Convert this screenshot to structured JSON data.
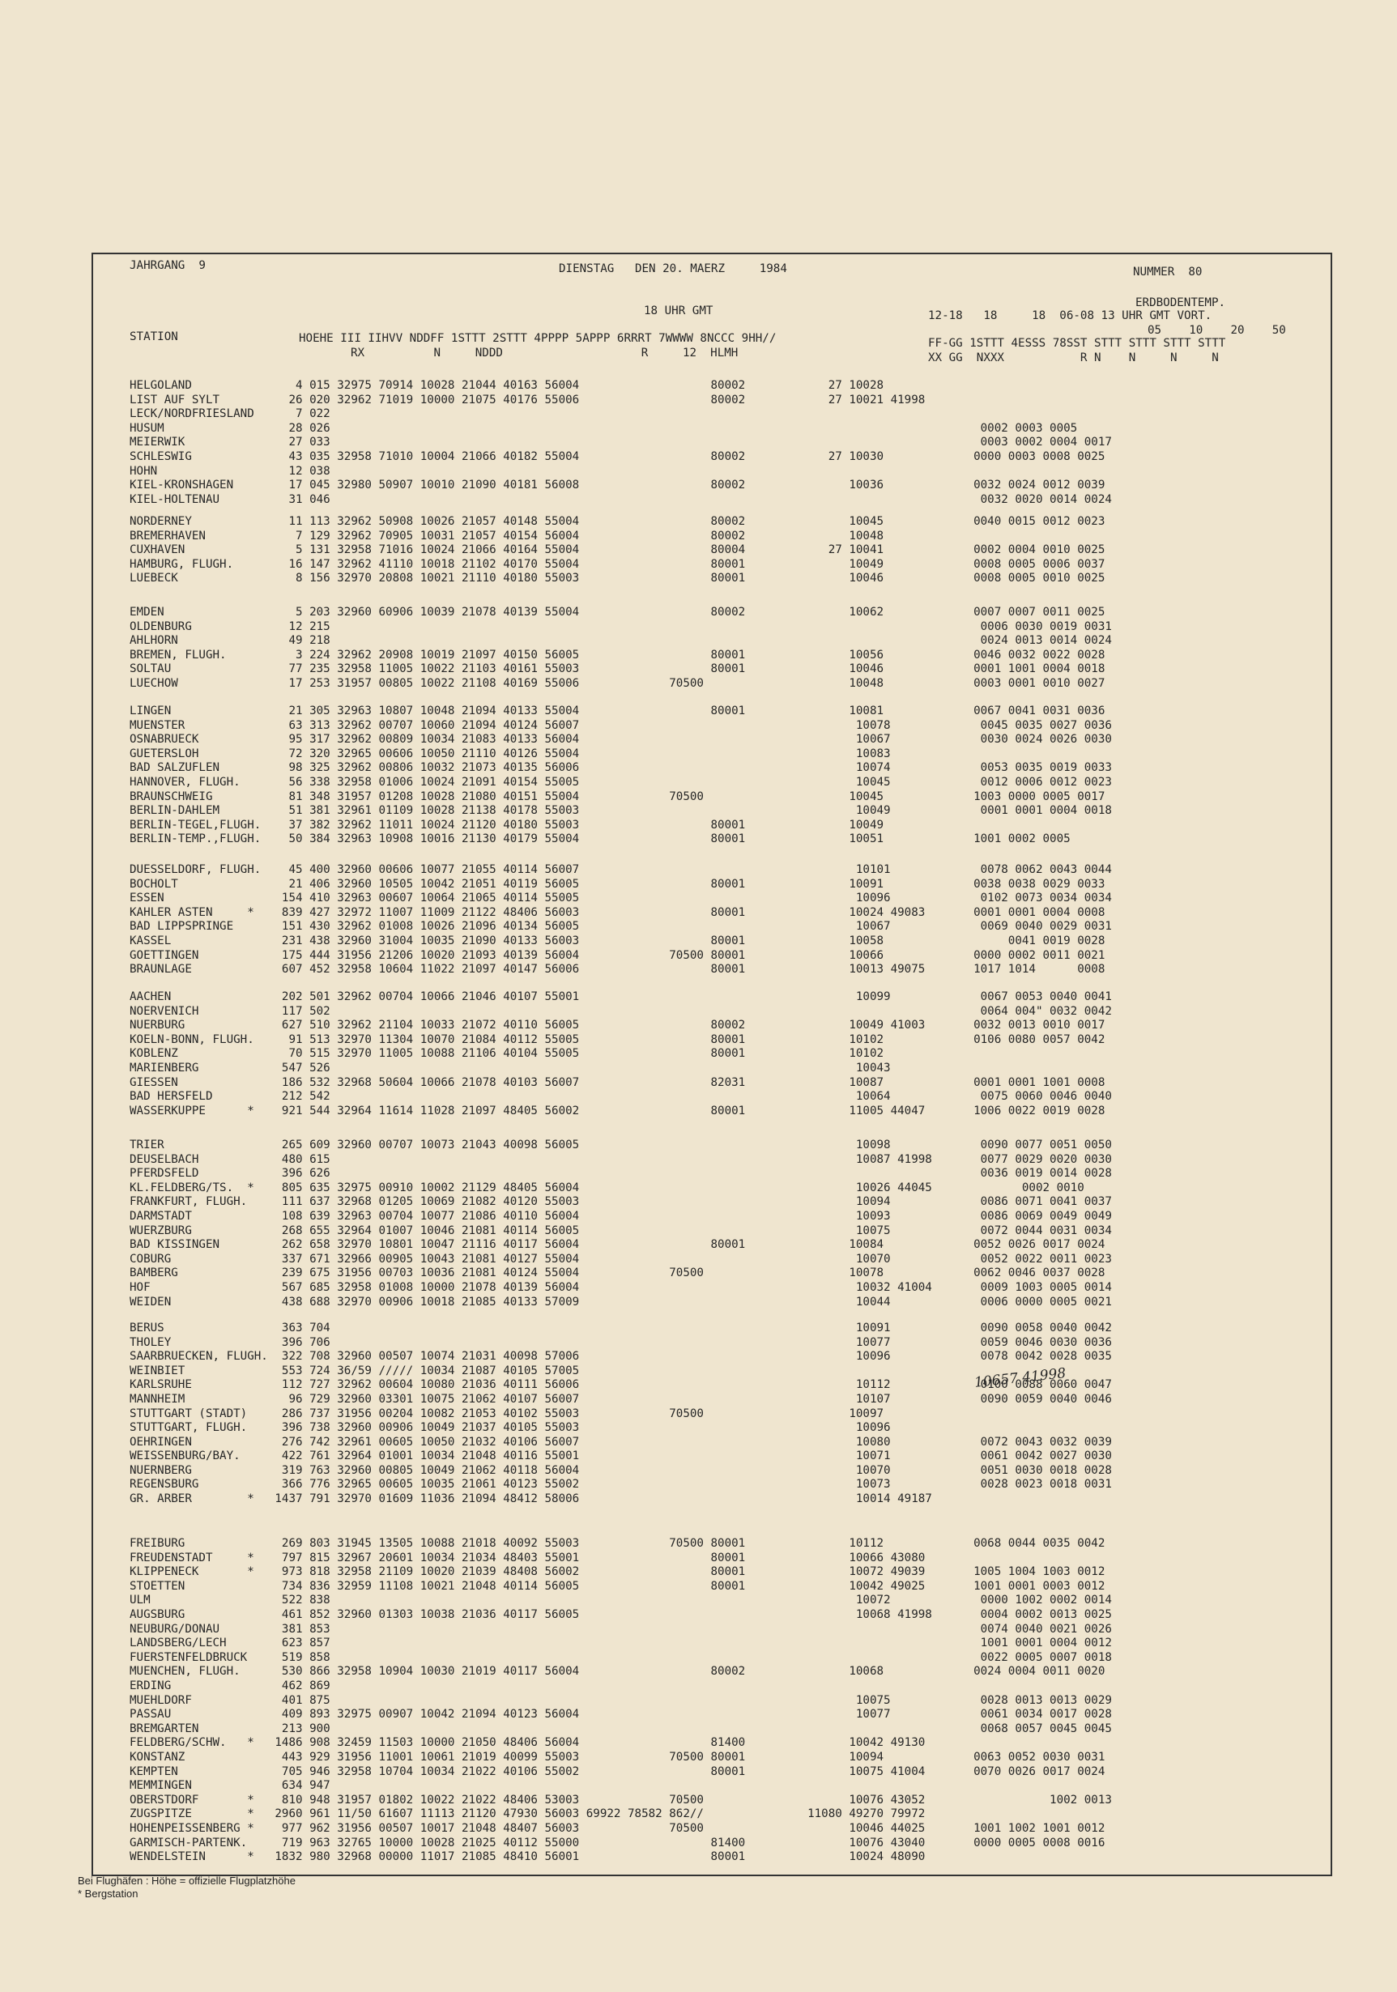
{
  "header": {
    "jahrgang": "JAHRGANG  9",
    "date": "DIENSTAG   DEN 20. MAERZ     1984",
    "nummer": "NUMMER  80",
    "erdbodentemp": "ERDBODENTEMP.",
    "gmt18": "18 UHR GMT",
    "times_right": "12-18   18     18  06-08 13 UHR GMT VORT.",
    "depths": "05    10    20    50",
    "station_label": "STATION",
    "col_main": "HOEHE III IIHVV NDDFF 1STTT 2STTT 4PPPP 5APPP 6RRRT 7WWWW 8NCCC 9HH//",
    "col_main2": "RX          N     NDDD                    R     12  HLMH",
    "col_right": "FF-GG 1STTT 4ESSS 78SST STTT STTT STTT STTT",
    "col_right2": "XX GG  NXXX           R N    N     N     N"
  },
  "groups": [
    [
      "HELGOLAND               4 015 32975 70914 10028 21044 40163 56004                   80002            27 10028",
      "LIST AUF SYLT          26 020 32962 71019 10000 21075 40176 55006                   80002            27 10021 41998",
      "LECK/NORDFRIESLAND      7 022",
      "HUSUM                  28 026                                                                                              0002 0003 0005",
      "MEIERWIK               27 033                                                                                              0003 0002 0004 0017",
      "SCHLESWIG              43 035 32958 71010 10004 21066 40182 55004                   80002            27 10030             0000 0003 0008 0025",
      "HOHN                   12 038",
      "KIEL-KRONSHAGEN        17 045 32980 50907 10010 21090 40181 56008                   80002               10036             0032 0024 0012 0039",
      "KIEL-HOLTENAU          31 046                                                                                              0032 0020 0014 0024"
    ],
    [
      "NORDERNEY              11 113 32962 50908 10026 21057 40148 55004                   80002               10045             0040 0015 0012 0023",
      "BREMERHAVEN             7 129 32962 70905 10031 21057 40154 56004                   80002               10048",
      "CUXHAVEN                5 131 32958 71016 10024 21066 40164 55004                   80004            27 10041             0002 0004 0010 0025",
      "HAMBURG, FLUGH.        16 147 32962 41110 10018 21102 40170 55004                   80001               10049             0008 0005 0006 0037",
      "LUEBECK                 8 156 32970 20808 10021 21110 40180 55003                   80001               10046             0008 0005 0010 0025"
    ],
    [
      "EMDEN                   5 203 32960 60906 10039 21078 40139 55004                   80002               10062             0007 0007 0011 0025",
      "OLDENBURG              12 215                                                                                              0006 0030 0019 0031",
      "AHLHORN                49 218                                                                                              0024 0013 0014 0024",
      "BREMEN, FLUGH.          3 224 32962 20908 10019 21097 40150 56005                   80001               10056             0046 0032 0022 0028",
      "SOLTAU                 77 235 32958 11005 10022 21103 40161 55003                   80001               10046             0001 1001 0004 0018",
      "LUECHOW                17 253 31957 00805 10022 21108 40169 55006             70500                     10048             0003 0001 0010 0027"
    ],
    [
      "LINGEN                 21 305 32963 10807 10048 21094 40133 55004                   80001               10081             0067 0041 0031 0036",
      "MUENSTER               63 313 32962 00707 10060 21094 40124 56007                                        10078             0045 0035 0027 0036",
      "OSNABRUECK             95 317 32962 00809 10034 21083 40133 56004                                        10067             0030 0024 0026 0030",
      "GUETERSLOH             72 320 32965 00606 10050 21110 40126 55004                                        10083",
      "BAD SALZUFLEN          98 325 32962 00806 10032 21073 40135 56006                                        10074             0053 0035 0019 0033",
      "HANNOVER, FLUGH.       56 338 32958 01006 10024 21091 40154 55005                                        10045             0012 0006 0012 0023",
      "BRAUNSCHWEIG           81 348 31957 01208 10028 21080 40151 55004             70500                     10045             1003 0000 0005 0017",
      "BERLIN-DAHLEM          51 381 32961 01109 10028 21138 40178 55003                                        10049             0001 0001 0004 0018",
      "BERLIN-TEGEL,FLUGH.    37 382 32962 11011 10024 21120 40180 55003                   80001               10049",
      "BERLIN-TEMP.,FLUGH.    50 384 32963 10908 10016 21130 40179 55004                   80001               10051             1001 0002 0005"
    ],
    [
      "DUESSELDORF, FLUGH.    45 400 32960 00606 10077 21055 40114 56007                                        10101             0078 0062 0043 0044",
      "BOCHOLT                21 406 32960 10505 10042 21051 40119 56005                   80001               10091             0038 0038 0029 0033",
      "ESSEN                 154 410 32963 00607 10064 21065 40114 55005                                        10096             0102 0073 0034 0034",
      "KAHLER ASTEN     *    839 427 32972 11007 11009 21122 48406 56003                   80001               10024 49083       0001 0001 0004 0008",
      "BAD LIPPSPRINGE       151 430 32962 01008 10026 21096 40134 56005                                        10067             0069 0040 0029 0031",
      "KASSEL                231 438 32960 31004 10035 21090 40133 56003                   80001               10058                  0041 0019 0028",
      "GOETTINGEN            175 444 31956 21206 10020 21093 40139 56004             70500 80001               10066             0000 0002 0011 0021",
      "BRAUNLAGE             607 452 32958 10604 11022 21097 40147 56006                   80001               10013 49075       1017 1014      0008"
    ],
    [
      "AACHEN                202 501 32962 00704 10066 21046 40107 55001                                        10099             0067 0053 0040 0041",
      "NOERVENICH            117 502                                                                                              0064 004\" 0032 0042",
      "NUERBURG              627 510 32962 21104 10033 21072 40110 56005                   80002               10049 41003       0032 0013 0010 0017",
      "KOELN-BONN, FLUGH.     91 513 32970 11304 10070 21084 40112 55005                   80001               10102             0106 0080 0057 0042",
      "KOBLENZ                70 515 32970 11005 10088 21106 40104 55005                   80001               10102",
      "MARIENBERG            547 526                                                                            10043",
      "GIESSEN               186 532 32968 50604 10066 21078 40103 56007                   82031               10087             0001 0001 1001 0008",
      "BAD HERSFELD          212 542                                                                            10064             0075 0060 0046 0040",
      "WASSERKUPPE      *    921 544 32964 11614 11028 21097 48405 56002                   80001               11005 44047       1006 0022 0019 0028"
    ],
    [
      "TRIER                 265 609 32960 00707 10073 21043 40098 56005                                        10098             0090 0077 0051 0050",
      "DEUSELBACH            480 615                                                                            10087 41998       0077 0029 0020 0030",
      "PFERDSFELD            396 626                                                                                              0036 0019 0014 0028",
      "KL.FELDBERG/TS.  *    805 635 32975 00910 10002 21129 48405 56004                                        10026 44045             0002 0010",
      "FRANKFURT, FLUGH.     111 637 32968 01205 10069 21082 40120 55003                                        10094             0086 0071 0041 0037",
      "DARMSTADT             108 639 32963 00704 10077 21086 40110 56004                                        10093             0086 0069 0049 0049",
      "WUERZBURG             268 655 32964 01007 10046 21081 40114 56005                                        10075             0072 0044 0031 0034",
      "BAD KISSINGEN         262 658 32970 10801 10047 21116 40117 56004                   80001               10084             0052 0026 0017 0024",
      "COBURG                337 671 32966 00905 10043 21081 40127 55004                                        10070             0052 0022 0011 0023",
      "BAMBERG               239 675 31956 00703 10036 21081 40124 55004             70500                     10078             0062 0046 0037 0028",
      "HOF                   567 685 32958 01008 10000 21078 40139 56004                                        10032 41004       0009 1003 0005 0014",
      "WEIDEN                438 688 32970 00906 10018 21085 40133 57009                                        10044             0006 0000 0005 0021"
    ],
    [
      "BERUS                 363 704                                                                            10091             0090 0058 0040 0042",
      "THOLEY                396 706                                                                            10077             0059 0046 0030 0036",
      "SAARBRUECKEN, FLUGH.  322 708 32960 00507 10074 21031 40098 57006                                        10096             0078 0042 0028 0035",
      "WEINBIET              553 724 36/59 ///// 10034 21087 40105 57005",
      "KARLSRUHE             112 727 32962 00604 10080 21036 40111 56006                                        10112             0100 0088 0060 0047",
      "MANNHEIM               96 729 32960 03301 10075 21062 40107 56007                                        10107             0090 0059 0040 0046",
      "STUTTGART (STADT)     286 737 31956 00204 10082 21053 40102 55003             70500                     10097",
      "STUTTGART, FLUGH.     396 738 32960 00906 10049 21037 40105 55003                                        10096",
      "OEHRINGEN             276 742 32961 00605 10050 21032 40106 56007                                        10080             0072 0043 0032 0039"
    ],
    [
      "WEISSENBURG/BAY.      422 761 32964 01001 10034 21048 40116 55001                                        10071             0061 0042 0027 0030",
      "NUERNBERG             319 763 32960 00805 10049 21062 40118 56004                                        10070             0051 0030 0018 0028",
      "REGENSBURG            366 776 32965 00605 10035 21061 40123 55002                                        10073             0028 0023 0018 0031",
      "GR. ARBER        *   1437 791 32970 01609 11036 21094 48412 58006                                        10014 49187"
    ],
    [
      "FREIBURG              269 803 31945 13505 10088 21018 40092 55003             70500 80001               10112             0068 0044 0035 0042",
      "FREUDENSTADT     *    797 815 32967 20601 10034 21034 48403 55001                   80001               10066 43080",
      "KLIPPENECK       *    973 818 32958 21109 10020 21039 48408 56002                   80001               10072 49039       1005 1004 1003 0012",
      "STOETTEN              734 836 32959 11108 10021 21048 40114 56005                   80001               10042 49025       1001 0001 0003 0012",
      "ULM                   522 838                                                                            10072             0000 1002 0002 0014",
      "AUGSBURG              461 852 32960 01303 10038 21036 40117 56005                                        10068 41998       0004 0002 0013 0025",
      "NEUBURG/DONAU         381 853                                                                                              0074 0040 0021 0026",
      "LANDSBERG/LECH        623 857                                                                                              1001 0001 0004 0012",
      "FUERSTENFELDBRUCK     519 858                                                                                              0022 0005 0007 0018",
      "MUENCHEN, FLUGH.      530 866 32958 10904 10030 21019 40117 56004                   80002               10068             0024 0004 0011 0020",
      "ERDING                462 869",
      "MUEHLDORF             401 875                                                                            10075             0028 0013 0013 0029",
      "PASSAU                409 893 32975 00907 10042 21094 40123 56004                                        10077             0061 0034 0017 0028",
      "BREMGARTEN            213 900                                                                                              0068 0057 0045 0045",
      "FELDBERG/SCHW.   *   1486 908 32459 11503 10000 21050 48406 56004                   81400               10042 49130",
      "KONSTANZ              443 929 31956 11001 10061 21019 40099 55003             70500 80001               10094             0063 0052 0030 0031",
      "KEMPTEN               705 946 32958 10704 10034 21022 40106 55002                   80001               10075 41004       0070 0026 0017 0024",
      "MEMMINGEN             634 947",
      "OBERSTDORF       *    810 948 31957 01802 10022 21022 48406 53003             70500                     10076 43052                  1002 0013",
      "ZUGSPITZE        *   2960 961 11/50 61607 11113 21120 47930 56003 69922 78582 862//               11080 49270 79972",
      "HOHENPEISSENBERG *    977 962 31956 00507 10017 21048 48407 56003             70500                     10046 44025       1001 1002 1001 0012",
      "GARMISCH-PARTENK.     719 963 32765 10000 10028 21025 40112 55000                   81400               10076 43040       0000 0005 0008 0016",
      "WENDELSTEIN      *   1832 980 32968 00000 11017 21085 48410 56001                   80001               10024 48090"
    ]
  ],
  "handwritten": "10657 41998",
  "footnotes": [
    "Bei Flughäfen : Höhe = offizielle Flugplatzhöhe",
    "* Bergstation"
  ]
}
